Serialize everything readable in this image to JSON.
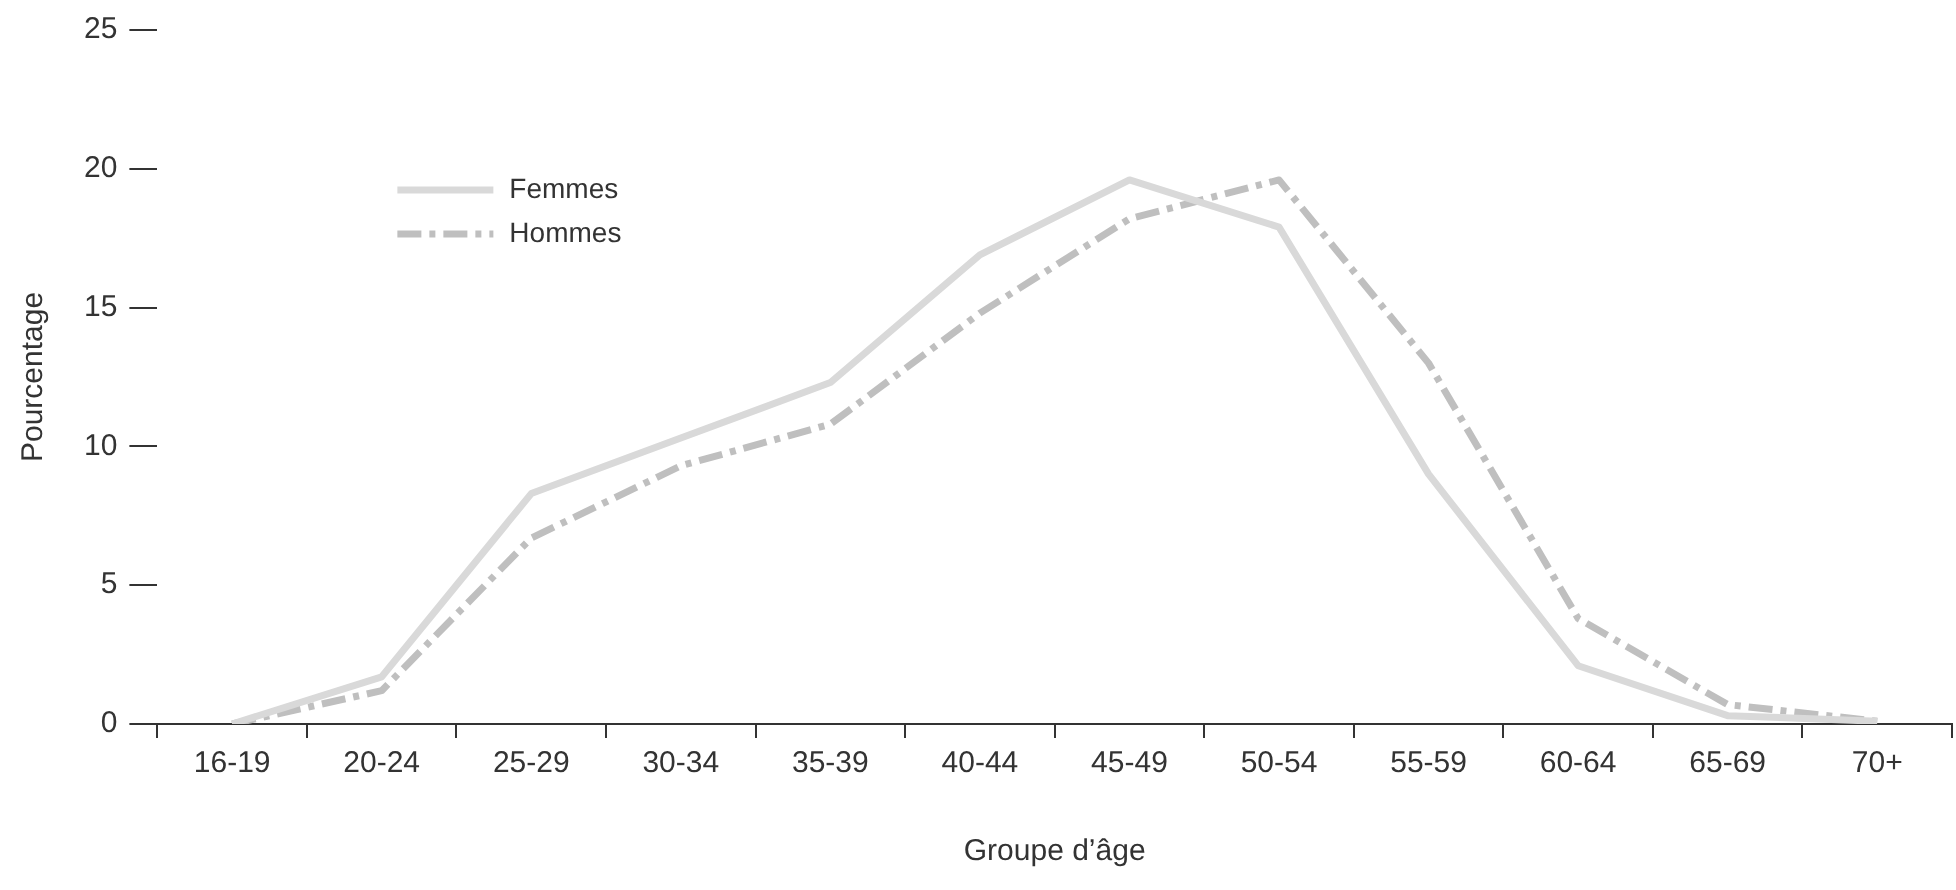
{
  "chart_data": {
    "type": "line",
    "xlabel": "Groupe d’âge",
    "ylabel": "Pourcentage",
    "categories": [
      "16-19",
      "20-24",
      "25-29",
      "30-34",
      "35-39",
      "40-44",
      "45-49",
      "50-54",
      "55-59",
      "60-64",
      "65-69",
      "70+"
    ],
    "series": [
      {
        "name": "Femmes",
        "color": "#d9d9d9",
        "line_style": "solid",
        "values": [
          0,
          1.7,
          8.3,
          10.3,
          12.3,
          16.9,
          19.6,
          17.9,
          9.0,
          2.1,
          0.3,
          0.1
        ]
      },
      {
        "name": "Hommes",
        "color": "#bfbfbf",
        "line_style": "dashed",
        "values": [
          0,
          1.2,
          6.7,
          9.3,
          10.8,
          14.8,
          18.2,
          19.6,
          13.0,
          3.8,
          0.7,
          0.1
        ]
      }
    ],
    "ylim": [
      0,
      25
    ],
    "yticks": [
      0,
      5,
      10,
      15,
      20,
      25
    ],
    "grid": false,
    "legend": "top left",
    "marker": "none"
  }
}
